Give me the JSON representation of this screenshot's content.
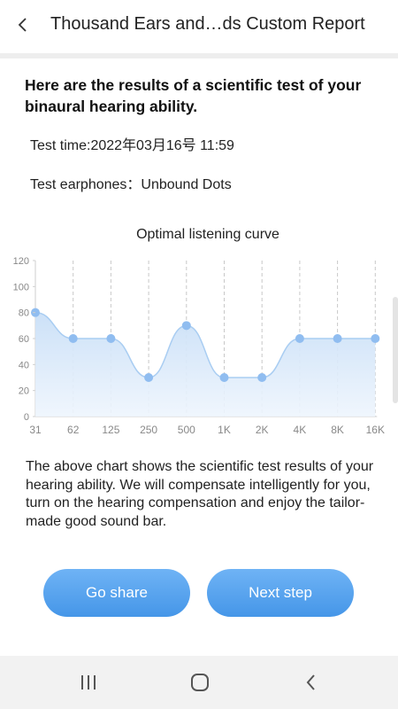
{
  "header": {
    "title": "Thousand Ears and…ds Custom Report",
    "back_icon": "chevron-left-icon"
  },
  "report": {
    "intro": "Here are the results of a scientific test of your binaural hearing ability.",
    "test_time": "Test time:2022年03月16号 11:59",
    "test_earphones": "Test earphones：Unbound Dots"
  },
  "chart_data": {
    "type": "area",
    "title": "Optimal listening curve",
    "categories": [
      "31",
      "62",
      "125",
      "250",
      "500",
      "1K",
      "2K",
      "4K",
      "8K",
      "16K"
    ],
    "values": [
      80,
      60,
      60,
      30,
      70,
      30,
      30,
      60,
      60,
      60
    ],
    "y_ticks": [
      "0",
      "20",
      "40",
      "60",
      "80",
      "100",
      "120"
    ],
    "ylim": [
      0,
      120
    ],
    "grid": "vertical dashed",
    "colors": {
      "line": "#a9cdf2",
      "fill_top": "#c9dff7",
      "fill_bottom": "#eef5fd",
      "point": "#90bdf0",
      "axis_text": "#888888"
    }
  },
  "description": "The above chart shows the scientific test results of your hearing ability. We will compensate intelligently for you, turn on the hearing compensation and enjoy the tailor-made good sound bar.",
  "buttons": {
    "share_label": "Go share",
    "next_label": "Next step",
    "color": "#4a9aea"
  },
  "navbar": {
    "recents_icon": "recents-icon",
    "home_icon": "home-icon",
    "back_icon": "back-icon"
  }
}
